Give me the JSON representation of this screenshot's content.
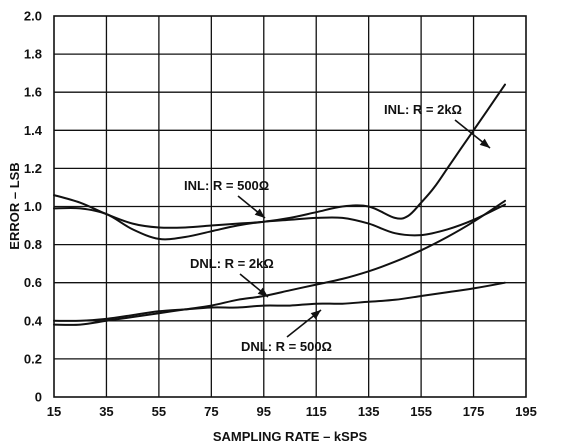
{
  "chart_data": {
    "type": "line",
    "xlabel": "SAMPLING RATE – kSPS",
    "ylabel": "ERROR – LSB",
    "xlim": [
      15,
      195
    ],
    "ylim": [
      0,
      2.0
    ],
    "x_ticks": [
      "15",
      "35",
      "55",
      "75",
      "95",
      "115",
      "135",
      "155",
      "175",
      "195"
    ],
    "y_ticks": [
      "0",
      "0.2",
      "0.4",
      "0.6",
      "0.8",
      "1.0",
      "1.2",
      "1.4",
      "1.6",
      "1.8",
      "2.0"
    ],
    "grid": true,
    "series": [
      {
        "name": "INL: R = 2kΩ",
        "x": [
          15,
          25,
          35,
          45,
          55,
          65,
          75,
          85,
          95,
          105,
          115,
          125,
          135,
          145,
          150,
          155,
          160,
          165,
          170,
          175,
          180,
          187
        ],
        "values": [
          1.06,
          1.02,
          0.96,
          0.91,
          0.89,
          0.89,
          0.9,
          0.91,
          0.92,
          0.94,
          0.97,
          1.0,
          1.0,
          0.94,
          0.95,
          1.02,
          1.1,
          1.2,
          1.3,
          1.4,
          1.5,
          1.64
        ]
      },
      {
        "name": "INL: R = 500Ω",
        "x": [
          15,
          25,
          35,
          45,
          55,
          65,
          75,
          85,
          95,
          105,
          115,
          125,
          135,
          145,
          155,
          165,
          175,
          187
        ],
        "values": [
          0.99,
          0.99,
          0.96,
          0.88,
          0.83,
          0.84,
          0.87,
          0.9,
          0.92,
          0.93,
          0.94,
          0.94,
          0.91,
          0.86,
          0.85,
          0.88,
          0.93,
          1.01
        ]
      },
      {
        "name": "DNL: R = 2kΩ",
        "x": [
          15,
          25,
          35,
          45,
          55,
          65,
          75,
          85,
          95,
          105,
          115,
          125,
          135,
          145,
          155,
          165,
          175,
          187
        ],
        "values": [
          0.38,
          0.38,
          0.4,
          0.42,
          0.44,
          0.46,
          0.48,
          0.51,
          0.53,
          0.56,
          0.59,
          0.62,
          0.66,
          0.71,
          0.77,
          0.84,
          0.92,
          1.03
        ]
      },
      {
        "name": "DNL: R = 500Ω",
        "x": [
          15,
          25,
          35,
          45,
          55,
          65,
          75,
          85,
          95,
          105,
          115,
          125,
          135,
          145,
          155,
          165,
          175,
          187
        ],
        "values": [
          0.4,
          0.4,
          0.41,
          0.43,
          0.45,
          0.46,
          0.47,
          0.47,
          0.48,
          0.48,
          0.49,
          0.49,
          0.5,
          0.51,
          0.53,
          0.55,
          0.57,
          0.6
        ]
      }
    ],
    "annotations": [
      {
        "text": "INL: R = 2kΩ",
        "series": 0
      },
      {
        "text": "INL: R = 500Ω",
        "series": 1
      },
      {
        "text": "DNL: R = 2kΩ",
        "series": 2
      },
      {
        "text": "DNL: R = 500Ω",
        "series": 3
      }
    ]
  }
}
